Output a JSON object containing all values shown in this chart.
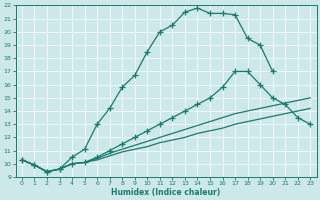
{
  "xlabel": "Humidex (Indice chaleur)",
  "background_color": "#cce8e8",
  "line_color": "#1a7a6e",
  "grid_color": "#b0d8d8",
  "xlim": [
    -0.5,
    23.5
  ],
  "ylim": [
    9,
    22
  ],
  "xticks": [
    0,
    1,
    2,
    3,
    4,
    5,
    6,
    7,
    8,
    9,
    10,
    11,
    12,
    13,
    14,
    15,
    16,
    17,
    18,
    19,
    20,
    21,
    22,
    23
  ],
  "yticks": [
    9,
    10,
    11,
    12,
    13,
    14,
    15,
    16,
    17,
    18,
    19,
    20,
    21,
    22
  ],
  "curves": [
    {
      "x": [
        0,
        1,
        2,
        3,
        4,
        5,
        6,
        7,
        8,
        9,
        10,
        11,
        12,
        13,
        14,
        15,
        16,
        17,
        18,
        19,
        20
      ],
      "y": [
        10.3,
        9.9,
        9.4,
        9.6,
        10.5,
        11.1,
        13.0,
        14.2,
        15.8,
        16.7,
        18.5,
        20.0,
        20.5,
        21.5,
        21.8,
        21.4,
        21.4,
        21.3,
        19.5,
        19.0,
        17.0
      ],
      "marker": true
    },
    {
      "x": [
        0,
        1,
        2,
        3,
        4,
        5,
        6,
        7,
        8,
        9,
        10,
        11,
        12,
        13,
        14,
        15,
        16,
        17,
        18,
        19,
        20,
        21,
        22,
        23
      ],
      "y": [
        10.3,
        9.9,
        9.4,
        9.6,
        10.0,
        10.1,
        10.5,
        11.0,
        11.5,
        12.0,
        12.5,
        13.0,
        13.5,
        14.0,
        14.5,
        15.0,
        15.8,
        17.0,
        17.0,
        16.0,
        15.0,
        14.5,
        13.5,
        13.0
      ],
      "marker": true
    },
    {
      "x": [
        0,
        1,
        2,
        3,
        4,
        5,
        6,
        7,
        8,
        9,
        10,
        11,
        12,
        13,
        14,
        15,
        16,
        17,
        18,
        19,
        20,
        21,
        22,
        23
      ],
      "y": [
        10.3,
        9.9,
        9.4,
        9.6,
        10.0,
        10.1,
        10.4,
        10.8,
        11.1,
        11.4,
        11.7,
        12.0,
        12.3,
        12.6,
        12.9,
        13.2,
        13.5,
        13.8,
        14.0,
        14.2,
        14.4,
        14.6,
        14.8,
        15.0
      ],
      "marker": false
    },
    {
      "x": [
        0,
        1,
        2,
        3,
        4,
        5,
        6,
        7,
        8,
        9,
        10,
        11,
        12,
        13,
        14,
        15,
        16,
        17,
        18,
        19,
        20,
        21,
        22,
        23
      ],
      "y": [
        10.3,
        9.9,
        9.4,
        9.6,
        10.0,
        10.1,
        10.3,
        10.6,
        10.9,
        11.1,
        11.3,
        11.6,
        11.8,
        12.0,
        12.3,
        12.5,
        12.7,
        13.0,
        13.2,
        13.4,
        13.6,
        13.8,
        14.0,
        14.2
      ],
      "marker": false
    }
  ]
}
